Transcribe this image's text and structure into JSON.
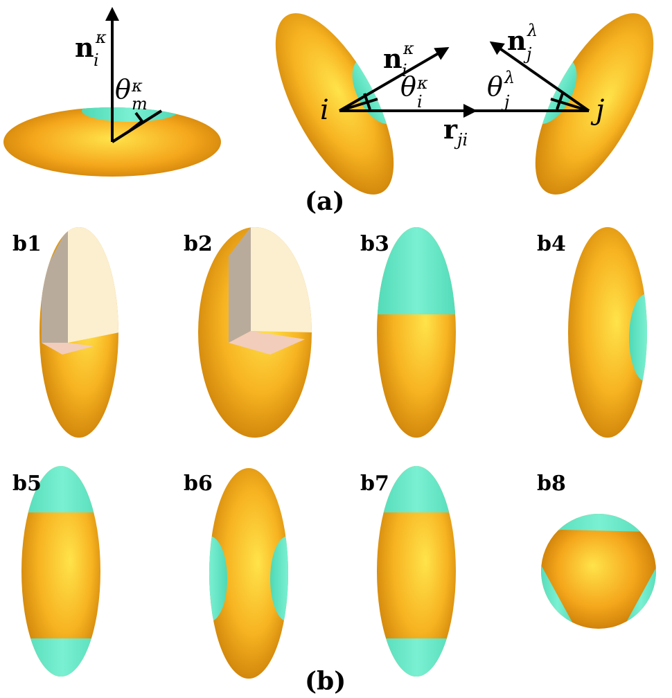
{
  "panel_a": {
    "label": "(a)",
    "left": {
      "n_symbol": "n",
      "n_sup": "κ",
      "n_sub": "i",
      "theta_symbol": "θ",
      "theta_sup": "κ",
      "theta_sub": "m"
    },
    "right": {
      "i_label": "i",
      "j_label": "j",
      "ni_symbol": "n",
      "ni_sup": "κ",
      "ni_sub": "i",
      "nj_symbol": "n",
      "nj_sup": "λ",
      "nj_sub": "j",
      "thetai_symbol": "θ",
      "thetai_sup": "κ",
      "thetai_sub": "i",
      "thetaj_symbol": "θ",
      "thetaj_sup": "λ",
      "thetaj_sub": "j",
      "r_symbol": "r",
      "r_sub": "ji"
    }
  },
  "panel_b": {
    "label": "(b)",
    "items": [
      "b1",
      "b2",
      "b3",
      "b4",
      "b5",
      "b6",
      "b7",
      "b8"
    ]
  },
  "colors": {
    "body": "#f5a71c",
    "body_light": "#ffe34a",
    "body_dark": "#c77a05",
    "patch": "#6ee8c8",
    "cut_light": "#fbefcf",
    "cut_grey": "#b9ab9c",
    "cut_pink": "#f2cdbb"
  }
}
